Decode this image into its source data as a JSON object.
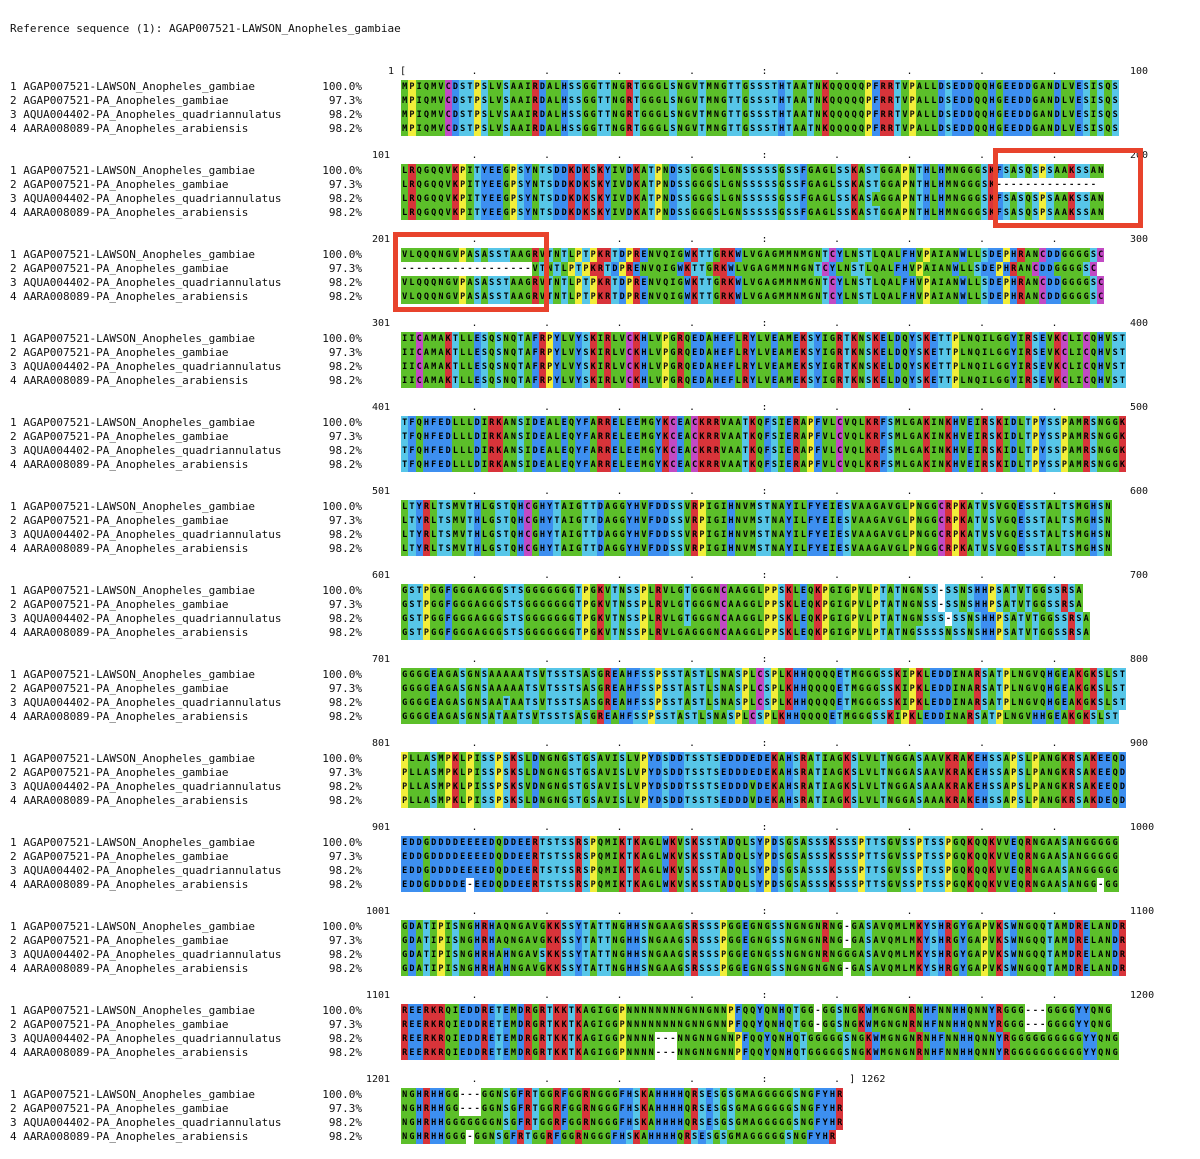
{
  "reference_label": "Reference sequence (1): AGAP007521-LAWSON_Anopheles_gambiae",
  "sequences": [
    {
      "index": "1",
      "name": "AGAP007521-LAWSON_Anopheles_gambiae",
      "identity": "100.0%"
    },
    {
      "index": "2",
      "name": "AGAP007521-PA_Anopheles_gambiae",
      "identity": "97.3%"
    },
    {
      "index": "3",
      "name": "AQUA004402-PA_Anopheles_quadriannulatus",
      "identity": "98.2%"
    },
    {
      "index": "4",
      "name": "AARA008089-PA_Anopheles_arabiensis",
      "identity": "98.2%"
    }
  ],
  "colors": {
    "green": "#5cbf2a",
    "blue": "#3d8ff0",
    "lightblue": "#57c6e8",
    "purple": "#8a4fc9",
    "red": "#d8343a",
    "yellow": "#f2ee3a",
    "magenta": "#c24ac4",
    "gray": "#b8b8b8",
    "highlight": "#e8432c"
  },
  "blocks": [
    {
      "start": "1",
      "end": "100",
      "rows": [
        "MPIQMVCDSTPSLVSAAIRDALHSSGGTTNGRTGGGLSNGVTMNGTTGSSSTHTAATNKQQQQQPFRRTVPALLDSEDDQQHGEEDDGANDLVESISQS",
        "MPIQMVCDSTPSLVSAAIRDALHSSGGTTNGRTGGGLSNGVTMNGTTGSSSTHTAATNKQQQQQPFRRTVPALLDSEDDQQHGEEDDGANDLVESISQS",
        "MPIQMVCDSTPSLVSAAIRDALHSSGGTTNGRTGGGLSNGVTMNGTTGSSSTHTAATNKQQQQQPFRRTVPALLDSEDDQQHGEEDDGANDLVESISQS",
        "MPIQMVCDSTPSLVSAAIRDALHSSGGTTNGRTGGGLSNGVTMNGTTGSSSTHTAATNKQQQQQPFRRTVPALLDSEDDQQHGEEDDGANDLVESISQS"
      ]
    },
    {
      "start": "101",
      "end": "200",
      "rows": [
        "LRQGQQVKPITYEEGPSYNTSDDKDKSKYIVDKATPNDSSGGGSLGNSSSSSGSSFGAGLSSKASTGGAPNTHLHMNGGGSKFSASQSPSAAKSSAN",
        "LRQGQQVKPITYEEGPSYNTSDDKDKSKYIVDKATPNDSSGGGSLGNSSSSSGSSFGAGLSSKASTGGAPNTHLHMNGGGSK--------------",
        "LRQGQQVKPITYEEGPSYNTSDDKDKSKYIVDKATPNDSSGGGSLGNSSSSSGSSFGAGLSSKASAGGAPNTHLHMNGGGSKFSASQSPSAAKSSAN",
        "LRQGQQVKPITYEEGPSYNTSDDKDKSKYIVDKATPNDSSGGGSLGNSSSSSGSSFGAGLSSKASTGGAPNTHLHMNGGGSKFSASQSPSAAKSSAN"
      ]
    },
    {
      "start": "201",
      "end": "300",
      "rows": [
        "VLQQQNGVPASASSTAAGRVTNTLPTPKRTDPRENVQIGWKTTGRKWLVGAGMMNMGNTCYLNSTLQALFHVPAIANWLLSDEPHRANCDDGGGGSC",
        "------------------VTNTLPTPKRTDPRENVQIGWKTTGRKWLVGAGMMNMGNTCYLNSTLQALFHVPAIANWLLSDEPHRANCDDGGGGSC",
        "VLQQQNGVPASASSTAAGRVTNTLPTPKRTDPRENVQIGWKTTGRKWLVGAGMMNMGNTCYLNSTLQALFHVPAIANWLLSDEPHRANCDDGGGGSC",
        "VLQQQNGVPASASSTAAGRVTNTLPTPKRTDPRENVQIGWKTTGRKWLVGAGMMNMGNTCYLNSTLQALFHVPAIANWLLSDEPHRANCDDGGGGSC"
      ]
    },
    {
      "start": "301",
      "end": "400",
      "rows": [
        "IICAMAKTLLESQSNQTAFRPYLVYSKIRLVCKHLVPGRQEDAHEFLRYLVEAMEKSYIGRTKNSKELDQYSKETTPLNQILGGYIRSEVKCLICQHVST",
        "IICAMAKTLLESQSNQTAFRPYLVYSKIRLVCKHLVPGRQEDAHEFLRYLVEAMEKSYIGRTKNSKELDQYSKETTPLNQILGGYIRSEVKCLICQHVST",
        "IICAMAKTLLESQSNQTAFRPYLVYSKIRLVCKHLVPGRQEDAHEFLRYLVEAMEKSYIGRTKNSKELDQYSKETTPLNQILGGYIRSEVKCLICQHVST",
        "IICAMAKTLLESQSNQTAFRPYLVYSKIRLVCKHLVPGRQEDAHEFLRYLVEAMEKSYIGRTKNSKELDQYSKETTPLNQILGGYIRSEVKCLICQHVST"
      ]
    },
    {
      "start": "401",
      "end": "500",
      "rows": [
        "TFQHFEDLLLDIRKANSIDEALEQYFARRELEEMGYKCEACKRRVAATKQFSIERAPFVLCVQLKRFSMLGAKINKHVEIRSKIDLTPYSSPAMRSNGGK",
        "TFQHFEDLLLDIRKANSIDEALEQYFARRELEEMGYKCEACKRRVAATKQFSIERAPFVLCVQLKRFSMLGAKINKHVEIRSKIDLTPYSSPAMRSNGGK",
        "TFQHFEDLLLDIRKANSIDEALEQYFARRELEEMGYKCEACKRRVAATKQFSIERAPFVLCVQLKRFSMLGAKINKHVEIRSKIDLTPYSSPAMRSNGGK",
        "TFQHFEDLLLDIRKANSIDEALEQYFARRELEEMGYKCEACKRRVAATKQFSIERAPFVLCVQLKRFSMLGAKINKHVEIRSKIDLTPYSSPAMRSNGGK"
      ]
    },
    {
      "start": "501",
      "end": "600",
      "rows": [
        "LTYRLTSMVTHLGSTQHCGHYTAIGTTDAGGYHVFDDSSVRPIGIHNVMSTNAYILFYEIESVAAGAVGLPNGGCRPKATVSVGQESSTALTSMGHSN",
        "LTYRLTSMVTHLGSTQHCGHYTAIGTTDAGGYHVFDDSSVRPIGIHNVMSTNAYILFYEIESVAAGAVGLPNGGCRPKATVSVGQESSTALTSMGHSN",
        "LTYRLTSMVTHLGSTQHCGHYTAIGTTDAGGYHVFDDSSVRPIGIHNVMSTNAYILFYEIESVAAGAVGLPNGGCRPKATVSVGQESSTALTSMGHSN",
        "LTYRLTSMVTHLGSTQHCGHYTAIGTTDAGGYHVFDDSSVRPIGIHNVMSTNAYILFYEIESVAAGAVGLPNGGCRPKATVSVGQESSTALTSMGHSN"
      ]
    },
    {
      "start": "601",
      "end": "700",
      "rows": [
        "GSTPGGFGGGAGGGSTSGGGGGGGTPGKVTNSSPLRVLGTGGGNCAAGGLPPSKLEQKPGIGPVLPTATNGNSS-SSNSHHPSATVTGGSSRSA",
        "GSTPGGFGGGAGGGSTSGGGGGGGTPGKVTNSSPLRVLGTGGGNCAAGGLPPSKLEQKPGIGPVLPTATNGNSS-SSNSHHPSATVTGGSSRSA",
        "GSTPGGFGGGAGGGSTSGGGGGGGTPGKVTNSSPLRVLGTGGGNCAAGGLPPSKLEQKPGIGPVLPTATNGNSSS-SSNSHHPSATVTGGSSRSA",
        "GSTPGGFGGGAGGGSTSGGGGGGGTPGKVTNSSPLRVLGAGGGNCAAGGLPPSKLEQKPGIGPVLPTATNGSSSSNSSNSHHPSATVTGGSSRSA"
      ]
    },
    {
      "start": "701",
      "end": "800",
      "rows": [
        "GGGGEAGASGNSAAAAATSVTSSTSASGREAHFSSPSSTASTLSNASPLCSPLKHHQQQQETMGGGSSKIPKLEDDINARSATPLNGVQHGEAKGKSLST",
        "GGGGEAGASGNSAAAAATSVTSSTSASGREAHFSSPSSTASTLSNASPLCSPLKHHQQQQETMGGGSSKIPKLEDDINARSATPLNGVQHGEAKGKSLST",
        "GGGGEAGASGNSAATAATSVTSSTSASGREAHFSSPSSTASTLSNASPLCSPLKHHQQQQETMGGGSSKIPKLEDDINARSATPLNGVQHGEAKGKSLST",
        "GGGGEAGASGNSATAATSVTSSTSASGREAHFSSPSSTASTLSNASPLCSPLKHHQQQQETMGGGSSKIPKLEDDINARSATPLNGVHHGEAKGKSLST"
      ]
    },
    {
      "start": "801",
      "end": "900",
      "rows": [
        "PLLASMPKLPISSPSKSLDNGNGSTGSAVISLVPYDSDDTSSTSEDDDEDEKAHSRATIAGKSLVLTNGGASAAVKRAKEHSSAPSLPANGKRSAKEEQD",
        "PLLASMPKLPISSPSKSLDNGNGSTGSAVISLVPYDSDDTSSTSEDDDEDEKAHSRATIAGKSLVLTNGGASAAVKRAKEHSSAPSLPANGKRSAKEEQD",
        "PLLASMPKLPISSPSKSVDNGNGSTGSAVISLVPYDSDDTSSTSEDDDVDEKAHSRATIAGKSLVLTNGGASAAAKRAKEHSSAPSLPANGKRSAKEEQD",
        "PLLASMPKLPISSPSKSLDNGNGSTGSAVISLVPYDSDDTSSTSEDDDVDEKAHSRATIAGKSLVLTNGGASAAAKRAKEHSSAPSLPANGKRSAKDEQD"
      ]
    },
    {
      "start": "901",
      "end": "1000",
      "rows": [
        "EDDGDDDDEEEEDQDDEERTSTSSRSPQMIKTKAGLWKVSKSSTADQLSYPDSGSASSSKSSSPTTSGVSSPTSSPGQKQQKVVEQRNGAASANGGGGG",
        "EDDGDDDDEEEEDQDDEERTSTSSRSPQMIKTKAGLWKVSKSSTADQLSYPDSGSASSSKSSSPTTSGVSSPTSSPGQKQQKVVEQRNGAASANGGGGG",
        "EDDGDDDDEEEEDQDDEERTSTSSRSPQMIKTKAGLWKVSKSSTADQLSYPDSGSASSSKSSSPTTSGVSSPTSSPGQKQQKVVEQRNGAASANGGGGG",
        "EDDGDDDDE-EEDQDDEERTSTSSRSPQMIKTKAGLWKVSKSSTADQLSYPDSGSASSSKSSSPTTSGVSSPTSSPGQKQQKVVEQRNGAASANGG-GG"
      ]
    },
    {
      "start": "1001",
      "end": "1100",
      "rows": [
        "GDATIPISNGHRHAQNGAVGKKSSYTATTNGHHSNGAAGSRSSSPGGEGNGSSNGNGNRNG-GASAVQMLMKYSHRGYGAPVKSWNGQQTAMDRELANDR",
        "GDATIPISNGHRHAQNGAVGKKSSYTATTNGHHSNGAAGSRSSSPGGEGNGSSNGNGNRNG-GASAVQMLMKYSHRGYGAPVKSWNGQQTAMDRELANDR",
        "GDATIPISNGHRHAHNGAVSKKSSYTATTNGHHSNGAAGSRSSSPGGEGNGSSNGNGNRNGGGASAVQMLMKYSHRGYGAPVKSWNGQQTAMDRELANDR",
        "GDATIPISNGHRHAHNGAVGKKSSYTATTNGHHSNGAAGSRSSSPGGEGNGSSNGNGNGNG-GASAVQMLMKYSHRGYGAPVKSWNGQQTAMDRELANDR"
      ]
    },
    {
      "start": "1101",
      "end": "1200",
      "rows": [
        "REERKRQIEDDRETEMDRGRTKKTKAGIGGPNNNNNNNNGNNGNNPFQQYQNHQTGG-GGSNGKWMGNGNRNHFNNHHQNNYRGGG---GGGGYYQNG",
        "REERKRQIEDDRETEMDRGRTKKTKAGIGGPNNNNNNNNGNNGNNPFQQYQNHQTGG-GGSNGKWMGNGNRNHFNNHHQNNYRGGG---GGGGYYQNG",
        "REERKRQIEDDRETEMDRGRTKKTKAGIGGPNNNN---NNGNNGNNPFQQYQNHQTGGGGGSNGKWMGNGNRNHFNNHHQNNYRGGGGGGGGGGYYQNG",
        "REERKRQIEDDRETEMDRGRTKKTKAGIGGPNNNN---NNGNNGNNPFQQYQNHQTGGGGGSNGKWMGNGNRNHFNNHHQNNYRGGGGGGGGGGYYQNG"
      ]
    },
    {
      "start": "1201",
      "end": "1262",
      "rows": [
        "NGHRHHGG---GGNSGFRTGGRFGGRNGGGFHSKAHHHHQRSESGSGMAGGGGGSNGFYHR",
        "NGHRHHGG---GGNSGFRTGGRFGGRNGGGFHSKAHHHHQRSESGSGMAGGGGGSNGFYHR",
        "NGHRHHGGGGGGGNSGFRTGGRFGGRNGGGFHSKAHHHHQRSESGSGMAGGGGGSNGFYHR",
        "NGHRHHGGG-GGNSGFRTGGRFGGRNGGGFHSKAHHHHQRSESGSGMAGGGGGSNGFYHR"
      ]
    }
  ]
}
